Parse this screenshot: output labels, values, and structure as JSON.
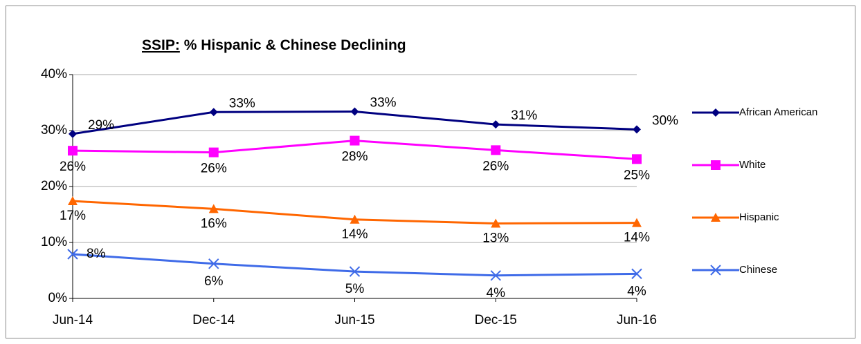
{
  "chart_data": {
    "type": "line",
    "title": [
      "SSIP:",
      "% Hispanic & Chinese Declining"
    ],
    "categories": [
      "Jun-14",
      "Dec-14",
      "Jun-15",
      "Dec-15",
      "Jun-16"
    ],
    "series": [
      {
        "name": "African American",
        "color": "#000080",
        "marker": "diamond",
        "values": [
          29.4,
          33.3,
          33.4,
          31.1,
          30.2
        ],
        "value_labels": [
          "29%",
          "33%",
          "33%",
          "31%",
          "30%"
        ]
      },
      {
        "name": "White",
        "color": "#ff00ff",
        "marker": "square",
        "values": [
          26.4,
          26.1,
          28.2,
          26.5,
          24.9
        ],
        "value_labels": [
          "26%",
          "26%",
          "28%",
          "26%",
          "25%"
        ]
      },
      {
        "name": "Hispanic",
        "color": "#ff6600",
        "marker": "triangle",
        "values": [
          17.4,
          16.0,
          14.1,
          13.4,
          13.5
        ],
        "value_labels": [
          "17%",
          "16%",
          "14%",
          "13%",
          "14%"
        ]
      },
      {
        "name": "Chinese",
        "color": "#3f6be8",
        "marker": "x",
        "values": [
          7.9,
          6.2,
          4.8,
          4.1,
          4.4
        ],
        "value_labels": [
          "8%",
          "6%",
          "5%",
          "4%",
          "4%"
        ]
      }
    ],
    "ylim": [
      0,
      40
    ],
    "yticks": [
      {
        "value": 0,
        "label": "0%"
      },
      {
        "value": 10,
        "label": "10%"
      },
      {
        "value": 20,
        "label": "20%"
      },
      {
        "value": 30,
        "label": "30%"
      },
      {
        "value": 40,
        "label": "40%"
      }
    ],
    "grid": true,
    "legend": "right"
  }
}
